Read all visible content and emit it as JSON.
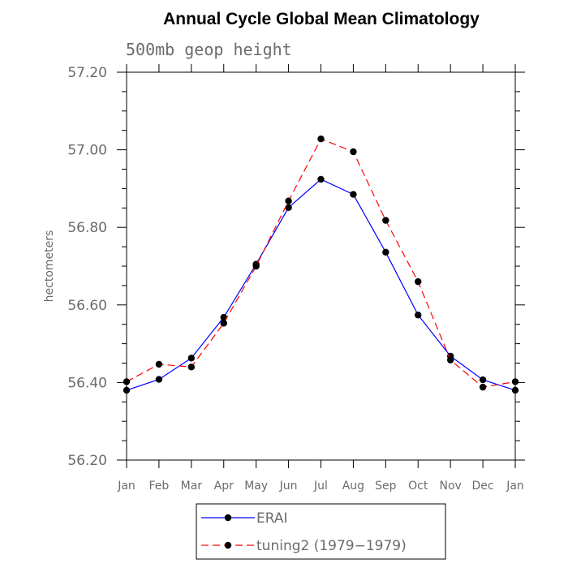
{
  "chart_data": {
    "type": "line",
    "title": "Annual Cycle Global Mean Climatology",
    "subtitle": "500mb geop height",
    "xlabel": "",
    "ylabel": "hectometers",
    "categories": [
      "Jan",
      "Feb",
      "Mar",
      "Apr",
      "May",
      "Jun",
      "Jul",
      "Aug",
      "Sep",
      "Oct",
      "Nov",
      "Dec",
      "Jan"
    ],
    "ylim": [
      56.2,
      57.2
    ],
    "yticks": [
      "56.20",
      "56.40",
      "56.60",
      "56.80",
      "57.00",
      "57.20"
    ],
    "grid": false,
    "legend_position": "bottom",
    "series": [
      {
        "name": "ERAI",
        "color": "#0000ff",
        "dash": "solid",
        "values": [
          56.38,
          56.408,
          56.463,
          56.568,
          56.705,
          56.851,
          56.924,
          56.885,
          56.736,
          56.574,
          56.468,
          56.407,
          56.38
        ]
      },
      {
        "name": "tuning2 (1979−1979)",
        "color": "#ff0000",
        "dash": "dashed",
        "values": [
          56.402,
          56.447,
          56.44,
          56.553,
          56.7,
          56.868,
          57.028,
          56.995,
          56.818,
          56.66,
          56.458,
          56.388,
          56.402
        ]
      }
    ]
  }
}
